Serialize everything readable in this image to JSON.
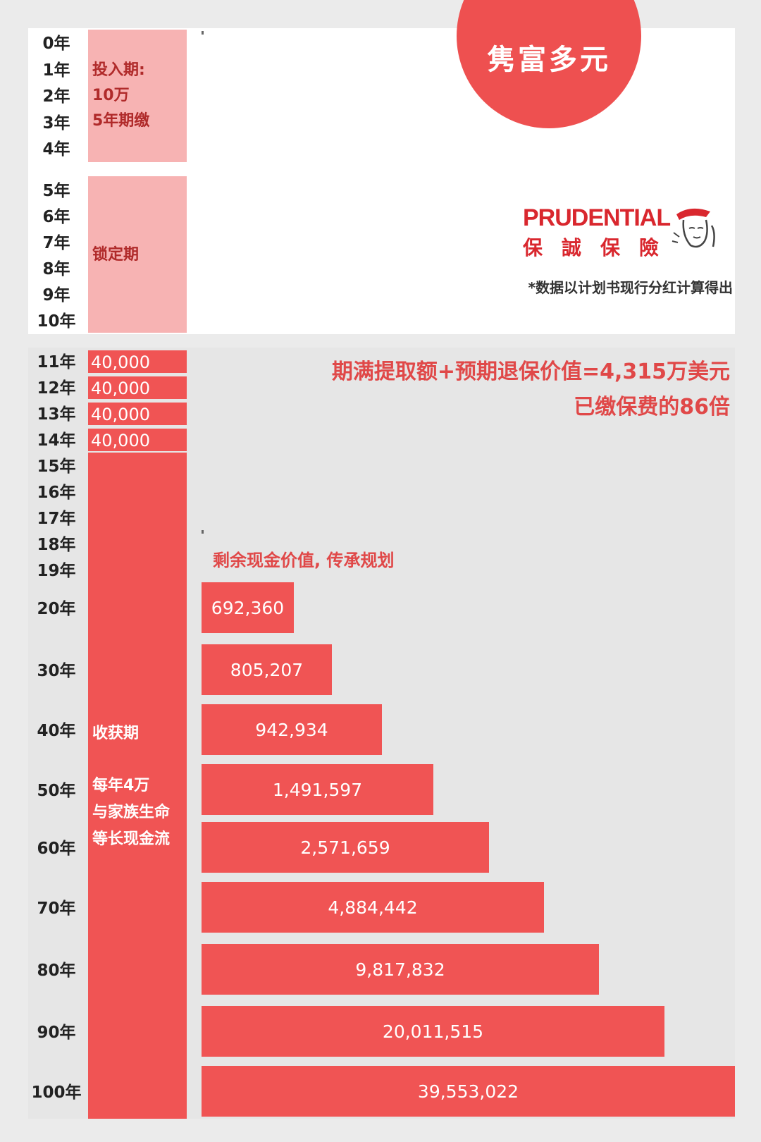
{
  "brand": {
    "circle_title": "隽富多元",
    "logo_en": "PRUDENTIAL",
    "logo_zh": "保誠保險",
    "icon": "helmeted-head-logo-icon"
  },
  "footnote": "*数据以计划书现行分红计算得出",
  "summary": {
    "line1": "期满提取额+预期退保价值=4,315万美元",
    "line2": "已缴保费的86倍"
  },
  "periods": {
    "invest": [
      "投入期:",
      "10万",
      "5年期缴"
    ],
    "lock": "锁定期",
    "harvest_title": "收获期",
    "harvest_desc": [
      "每年4万",
      "与家族生命",
      "等长现金流"
    ]
  },
  "years_top": [
    "0年",
    "1年",
    "2年",
    "3年",
    "4年",
    "5年",
    "6年",
    "7年",
    "8年",
    "9年",
    "10年"
  ],
  "years_payout": [
    "11年",
    "12年",
    "13年",
    "14年",
    "15年",
    "16年",
    "17年",
    "18年",
    "19年"
  ],
  "payouts": [
    "40,000",
    "40,000",
    "40,000",
    "40,000"
  ],
  "bars_section_label": "剩余现金价值, 传承规划",
  "colors": {
    "accent_red": "#f05454",
    "pink": "#f7b3b3",
    "text_red": "#e04848"
  },
  "chart_data": {
    "type": "bar",
    "orientation": "horizontal",
    "categories": [
      "20年",
      "30年",
      "40年",
      "50年",
      "60年",
      "70年",
      "80年",
      "90年",
      "100年"
    ],
    "values": [
      692360,
      805207,
      942934,
      1491597,
      2571659,
      4884442,
      9817832,
      20011515,
      39553022
    ],
    "value_labels": [
      "692,360",
      "805,207",
      "942,934",
      "1,491,597",
      "2,571,659",
      "4,884,442",
      "9,817,832",
      "20,011,515",
      "39,553,022"
    ],
    "title": "",
    "xlabel": "",
    "ylabel": "",
    "grid": false,
    "scale": "nonlinear"
  }
}
